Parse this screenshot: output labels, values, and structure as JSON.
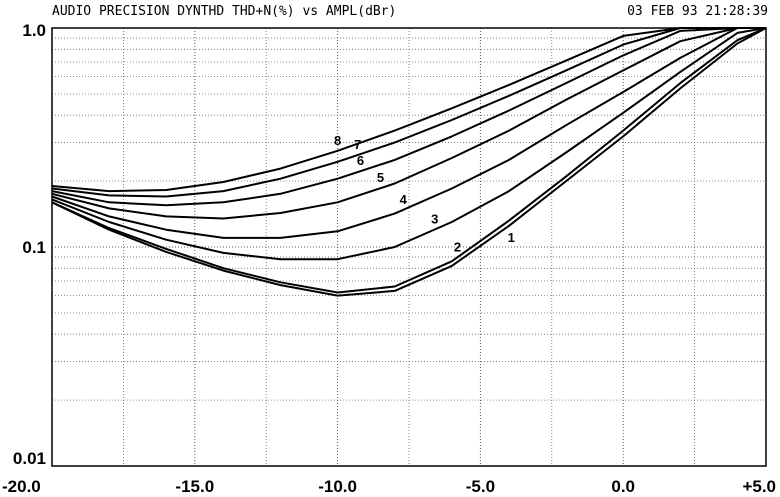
{
  "header": {
    "title": "AUDIO PRECISION DYNTHD THD+N(%) vs AMPL(dBr)",
    "timestamp": "03 FEB 93 21:28:39"
  },
  "chart_data": {
    "type": "line",
    "title": "AUDIO PRECISION DYNTHD THD+N(%) vs AMPL(dBr)",
    "xlabel": "",
    "ylabel": "",
    "xlim": [
      -20,
      5
    ],
    "ylim": [
      0.01,
      1.0
    ],
    "yscale": "log",
    "grid": true,
    "legend": "none",
    "x_ticks": [
      "-20.0",
      "-15.0",
      "-10.0",
      "-5.0",
      "0.0",
      "+5.0"
    ],
    "y_ticks": [
      "1.0",
      "0.1",
      "0.01"
    ],
    "x": [
      -20,
      -18,
      -16,
      -14,
      -12,
      -10,
      -8,
      -6,
      -4,
      -2,
      0,
      2,
      4,
      5
    ],
    "series": [
      {
        "name": "1",
        "values": [
          0.16,
          0.12,
          0.095,
          0.078,
          0.067,
          0.06,
          0.063,
          0.082,
          0.125,
          0.2,
          0.32,
          0.53,
          0.85,
          1.0
        ]
      },
      {
        "name": "2",
        "values": [
          0.16,
          0.122,
          0.098,
          0.08,
          0.069,
          0.062,
          0.066,
          0.086,
          0.132,
          0.21,
          0.34,
          0.56,
          0.88,
          1.0
        ]
      },
      {
        "name": "3",
        "values": [
          0.165,
          0.13,
          0.108,
          0.094,
          0.088,
          0.088,
          0.1,
          0.13,
          0.18,
          0.27,
          0.41,
          0.63,
          0.95,
          1.0
        ]
      },
      {
        "name": "4",
        "values": [
          0.17,
          0.138,
          0.12,
          0.11,
          0.11,
          0.118,
          0.142,
          0.185,
          0.25,
          0.36,
          0.51,
          0.73,
          1.0,
          1.0
        ]
      },
      {
        "name": "5",
        "values": [
          0.175,
          0.15,
          0.138,
          0.135,
          0.143,
          0.16,
          0.195,
          0.255,
          0.34,
          0.47,
          0.64,
          0.87,
          1.0,
          1.0
        ]
      },
      {
        "name": "6",
        "values": [
          0.18,
          0.16,
          0.155,
          0.16,
          0.175,
          0.205,
          0.25,
          0.32,
          0.42,
          0.56,
          0.75,
          0.97,
          1.0,
          1.0
        ]
      },
      {
        "name": "7",
        "values": [
          0.185,
          0.172,
          0.17,
          0.18,
          0.205,
          0.245,
          0.3,
          0.38,
          0.49,
          0.64,
          0.84,
          1.0,
          1.0,
          1.0
        ]
      },
      {
        "name": "8",
        "values": [
          0.19,
          0.18,
          0.182,
          0.198,
          0.228,
          0.275,
          0.34,
          0.43,
          0.55,
          0.71,
          0.92,
          1.0,
          1.0,
          1.0
        ]
      }
    ]
  }
}
